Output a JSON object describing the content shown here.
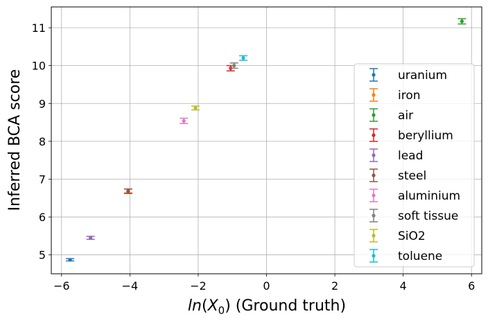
{
  "chart_data": {
    "type": "scatter",
    "title": "",
    "xlabel_italic": "ln",
    "xlabel_var": "X",
    "xlabel_sub": "0",
    "xlabel_tail": " (Ground truth)",
    "ylabel": "Inferred BCA score",
    "xlim": [
      -6.3,
      6.3
    ],
    "ylim": [
      4.5,
      11.55
    ],
    "xticks": [
      -6,
      -4,
      -2,
      0,
      2,
      4,
      6
    ],
    "yticks": [
      5,
      6,
      7,
      8,
      9,
      10,
      11
    ],
    "xtick_labels": [
      "−6",
      "−4",
      "−2",
      "0",
      "2",
      "4",
      "6"
    ],
    "ytick_labels": [
      "5",
      "6",
      "7",
      "8",
      "9",
      "10",
      "11"
    ],
    "grid": true,
    "legend_position": "lower-right",
    "series": [
      {
        "name": "uranium",
        "color": "#1f77b4",
        "x": -5.75,
        "y": 4.87,
        "err": 0.03
      },
      {
        "name": "iron",
        "color": "#ff7f0e",
        "x": -4.05,
        "y": 6.69,
        "err": 0.05
      },
      {
        "name": "air",
        "color": "#2ca02c",
        "x": 5.72,
        "y": 11.17,
        "err": 0.07
      },
      {
        "name": "beryllium",
        "color": "#d62728",
        "x": -1.05,
        "y": 9.93,
        "err": 0.07
      },
      {
        "name": "lead",
        "color": "#9467bd",
        "x": -5.15,
        "y": 5.45,
        "err": 0.04
      },
      {
        "name": "steel",
        "color": "#8c564b",
        "x": -4.05,
        "y": 6.68,
        "err": 0.06
      },
      {
        "name": "aluminium",
        "color": "#e377c2",
        "x": -2.42,
        "y": 8.54,
        "err": 0.07
      },
      {
        "name": "soft tissue",
        "color": "#7f7f7f",
        "x": -0.95,
        "y": 10.0,
        "err": 0.07
      },
      {
        "name": "SiO2",
        "color": "#bcbd22",
        "x": -2.08,
        "y": 8.88,
        "err": 0.05
      },
      {
        "name": "toluene",
        "color": "#17becf",
        "x": -0.68,
        "y": 10.2,
        "err": 0.06
      }
    ]
  }
}
